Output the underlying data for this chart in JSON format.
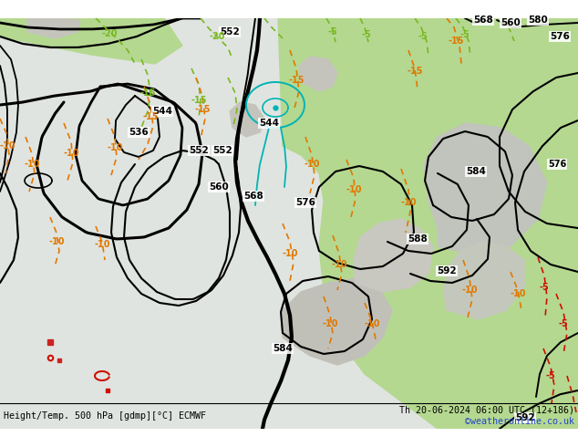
{
  "title_left": "Height/Temp. 500 hPa [gdmp][°C] ECMWF",
  "title_right": "Th 20-06-2024 06:00 UTC (12+186)",
  "watermark": "©weatheronline.co.uk",
  "bg_ocean": "#e8e8e8",
  "bg_land_gray": "#c8c8c8",
  "green_fill": "#b8dc98",
  "fig_width": 6.34,
  "fig_height": 4.9,
  "dpi": 100
}
